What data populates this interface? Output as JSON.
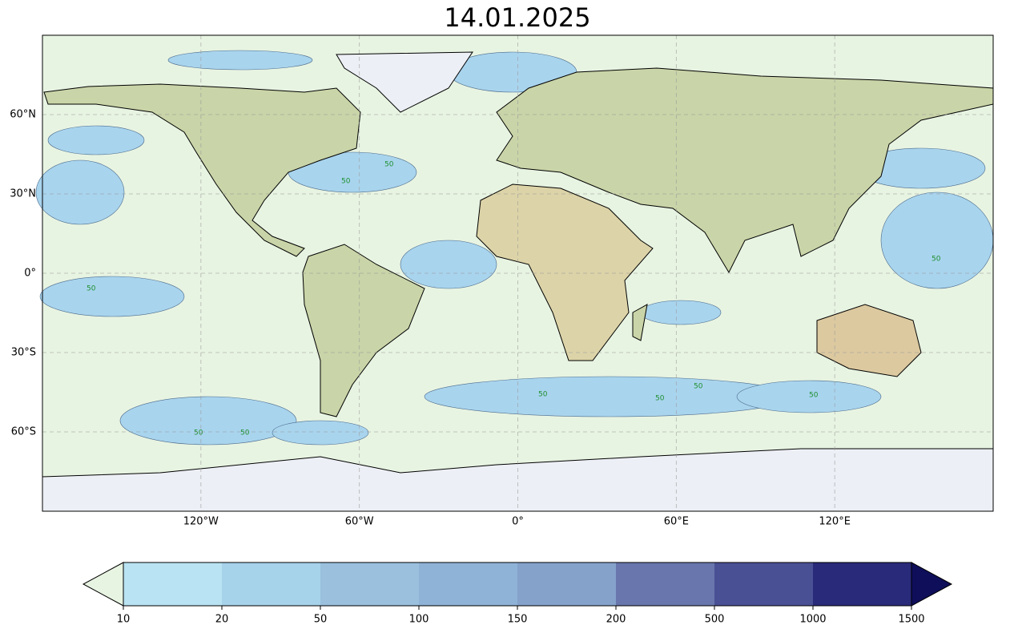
{
  "title": "14.01.2025",
  "map": {
    "lonlim": [
      -180,
      180
    ],
    "latlim": [
      -90,
      90
    ],
    "lon_ticks": [
      {
        "value": -120,
        "label": "120°W"
      },
      {
        "value": -60,
        "label": "60°W"
      },
      {
        "value": 0,
        "label": "0°"
      },
      {
        "value": 60,
        "label": "60°E"
      },
      {
        "value": 120,
        "label": "120°E"
      }
    ],
    "lat_ticks": [
      {
        "value": 60,
        "label": "60°N"
      },
      {
        "value": 30,
        "label": "30°N"
      },
      {
        "value": 0,
        "label": "0°"
      },
      {
        "value": -30,
        "label": "30°S"
      },
      {
        "value": -60,
        "label": "60°S"
      }
    ],
    "grid": true,
    "contour_label": "50"
  },
  "colorbar": {
    "ticks": [
      10,
      20,
      50,
      100,
      150,
      200,
      500,
      1000,
      1500
    ],
    "colors": [
      "#b9e3f2",
      "#a6d2ea",
      "#9ac0de",
      "#8fb2d7",
      "#85a2cb",
      "#6876ad",
      "#4a5094",
      "#2a2a7a"
    ],
    "under_color": "#e8f4e2",
    "over_color": "#0e0e5a"
  }
}
